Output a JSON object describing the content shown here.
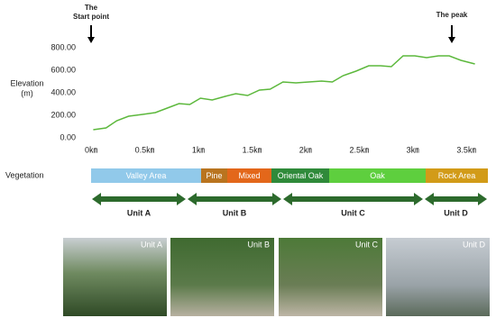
{
  "chart_data": {
    "type": "line",
    "ylabel": [
      "Elevation",
      "(m)"
    ],
    "annotations": [
      [
        "The",
        "Start point"
      ],
      [
        "The peak"
      ]
    ],
    "x": [
      0.02,
      0.14,
      0.24,
      0.35,
      0.48,
      0.6,
      0.71,
      0.82,
      0.92,
      1.02,
      1.13,
      1.25,
      1.35,
      1.46,
      1.57,
      1.67,
      1.79,
      1.91,
      2.03,
      2.15,
      2.25,
      2.35,
      2.47,
      2.59,
      2.7,
      2.8,
      2.91,
      3.02,
      3.13,
      3.24,
      3.34,
      3.45,
      3.58
    ],
    "values": [
      72,
      88,
      152,
      192,
      208,
      224,
      264,
      304,
      296,
      352,
      336,
      368,
      392,
      376,
      424,
      432,
      496,
      488,
      496,
      504,
      496,
      552,
      592,
      640,
      640,
      632,
      728,
      728,
      712,
      728,
      728,
      688,
      656
    ],
    "color": "#5cb83c",
    "xlim": [
      0,
      3.6
    ],
    "ylim": [
      0,
      800
    ],
    "xticks": [
      {
        "value": 0,
        "label": "0㎞"
      },
      {
        "value": 0.5,
        "label": "0.5㎞"
      },
      {
        "value": 1,
        "label": "1㎞"
      },
      {
        "value": 1.5,
        "label": "1.5㎞"
      },
      {
        "value": 2,
        "label": "2㎞"
      },
      {
        "value": 2.5,
        "label": "2.5㎞"
      },
      {
        "value": 3,
        "label": "3㎞"
      },
      {
        "value": 3.5,
        "label": "3.5㎞"
      }
    ],
    "yticks": [
      {
        "value": 0,
        "label": "0.00"
      },
      {
        "value": 200,
        "label": "200.00"
      },
      {
        "value": 400,
        "label": "400.00"
      },
      {
        "value": 600,
        "label": "600.00"
      },
      {
        "value": 800,
        "label": "800.00"
      }
    ]
  },
  "vegetation": {
    "label": "Vegetation",
    "zones": [
      "Valley Area",
      "Pine",
      "Mixed",
      "Oriental Oak",
      "Oak",
      "Rock Area"
    ]
  },
  "units": [
    "Unit A",
    "Unit B",
    "Unit C",
    "Unit D"
  ],
  "photos": [
    "Unit A",
    "Unit B",
    "Unit C",
    "Unit D"
  ]
}
